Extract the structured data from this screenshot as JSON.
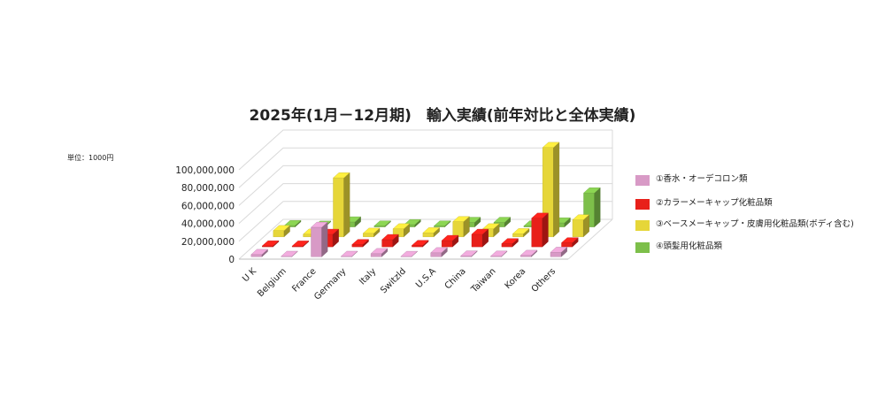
{
  "unit_label": "単位：1000円",
  "colors": {
    "series": [
      "#d89ac6",
      "#e8201a",
      "#e6d639",
      "#7dbf4a"
    ],
    "grid": "#d9d9d9"
  },
  "chart_data": {
    "type": "bar",
    "style": "3d-grouped",
    "title": "2025年(1月－12月期)　輸入実績(前年対比と全体実績)",
    "categories": [
      "U K",
      "Belgium",
      "France",
      "Germany",
      "Italy",
      "Switzld",
      "U.S.A",
      "China",
      "Taiwan",
      "Korea",
      "Others"
    ],
    "series": [
      {
        "name": "①香水・オーデコロン類",
        "values": [
          2500,
          400,
          33000,
          400,
          3500,
          300,
          4500,
          800,
          600,
          1500,
          5000
        ]
      },
      {
        "name": "②カラーメーキャップ化粧品類",
        "values": [
          1000,
          800,
          14000,
          2500,
          8000,
          1500,
          7000,
          14000,
          3500,
          32000,
          4500
        ]
      },
      {
        "name": "③ベースメーキャップ・皮膚用化粧品類(ボディ含む)",
        "values": [
          7000,
          3000,
          66000,
          4000,
          9000,
          4500,
          17000,
          9000,
          3500,
          100000,
          19000
        ]
      },
      {
        "name": "④頭髪用化粧品類",
        "values": [
          1500,
          800,
          5500,
          1000,
          2500,
          1000,
          5000,
          5000,
          1000,
          4500,
          38000
        ]
      }
    ],
    "yticks": [
      "0",
      "20,000,000",
      "40,000,000",
      "60,000,000",
      "80,000,000",
      "100,000,000"
    ],
    "ylim": [
      0,
      100000
    ],
    "legend_position": "right",
    "grid": true
  }
}
